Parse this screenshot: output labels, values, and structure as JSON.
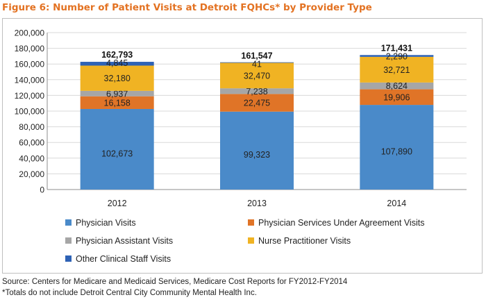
{
  "title": "Figure 6: Number of Patient Visits at Detroit FQHCs* by Provider Type",
  "source": "Source: Centers for Medicare and Medicaid Services, Medicare Cost Reports for FY2012-FY2014",
  "footnote": "*Totals do not include Detroit Central City Community Mental Health Inc.",
  "chart_data": {
    "type": "bar",
    "stacked": true,
    "categories": [
      "2012",
      "2013",
      "2014"
    ],
    "series": [
      {
        "name": "Physician Visits",
        "color": "#4a8ac9",
        "values": [
          102673,
          99323,
          107890
        ],
        "labels": [
          "102,673",
          "99,323",
          "107,890"
        ]
      },
      {
        "name": "Physician Services Under Agreement Visits",
        "color": "#e07427",
        "values": [
          16158,
          22475,
          19906
        ],
        "labels": [
          "16,158",
          "22,475",
          "19,906"
        ]
      },
      {
        "name": "Physician Assistant Visits",
        "color": "#a6a6a6",
        "values": [
          6937,
          7238,
          8624
        ],
        "labels": [
          "6,937",
          "7,238",
          "8,624"
        ]
      },
      {
        "name": "Nurse Practitioner Visits",
        "color": "#f0b323",
        "values": [
          32180,
          32470,
          32721
        ],
        "labels": [
          "32,180",
          "32,470",
          "32,721"
        ]
      },
      {
        "name": "Other Clinical Staff Visits",
        "color": "#2e62b5",
        "values": [
          4845,
          41,
          2290
        ],
        "labels": [
          "4,845",
          "41",
          "2,290"
        ]
      }
    ],
    "totals": [
      162793,
      161547,
      171431
    ],
    "total_labels": [
      "162,793",
      "161,547",
      "171,431"
    ],
    "ylim": [
      0,
      200000
    ],
    "yticks": [
      0,
      20000,
      40000,
      60000,
      80000,
      100000,
      120000,
      140000,
      160000,
      180000,
      200000
    ],
    "ytick_labels": [
      "0",
      "20,000",
      "40,000",
      "60,000",
      "80,000",
      "100,000",
      "120,000",
      "140,000",
      "160,000",
      "180,000",
      "200,000"
    ],
    "grid": true,
    "legend_position": "bottom"
  }
}
